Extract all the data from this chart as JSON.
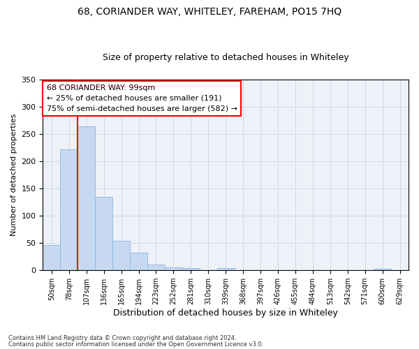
{
  "title": "68, CORIANDER WAY, WHITELEY, FAREHAM, PO15 7HQ",
  "subtitle": "Size of property relative to detached houses in Whiteley",
  "xlabel": "Distribution of detached houses by size in Whiteley",
  "ylabel": "Number of detached properties",
  "categories": [
    "50sqm",
    "78sqm",
    "107sqm",
    "136sqm",
    "165sqm",
    "194sqm",
    "223sqm",
    "252sqm",
    "281sqm",
    "310sqm",
    "339sqm",
    "368sqm",
    "397sqm",
    "426sqm",
    "455sqm",
    "484sqm",
    "513sqm",
    "542sqm",
    "571sqm",
    "600sqm",
    "629sqm"
  ],
  "values": [
    47,
    222,
    265,
    135,
    54,
    32,
    10,
    6,
    4,
    0,
    4,
    0,
    0,
    0,
    0,
    0,
    0,
    0,
    0,
    3,
    0
  ],
  "bar_color": "#c6d9f0",
  "bar_edge_color": "#8db3e2",
  "red_line_x": 1.5,
  "annotation_text": "68 CORIANDER WAY: 99sqm\n← 25% of detached houses are smaller (191)\n75% of semi-detached houses are larger (582) →",
  "annotation_box_color": "white",
  "annotation_box_edge": "red",
  "property_line_color": "red",
  "footnote1": "Contains HM Land Registry data © Crown copyright and database right 2024.",
  "footnote2": "Contains public sector information licensed under the Open Government Licence v3.0.",
  "ylim": [
    0,
    350
  ],
  "yticks": [
    0,
    50,
    100,
    150,
    200,
    250,
    300,
    350
  ],
  "grid_color": "#d0d8e8",
  "bg_color": "#eef2f8",
  "title_fontsize": 10,
  "subtitle_fontsize": 9,
  "annotation_fontsize": 8
}
